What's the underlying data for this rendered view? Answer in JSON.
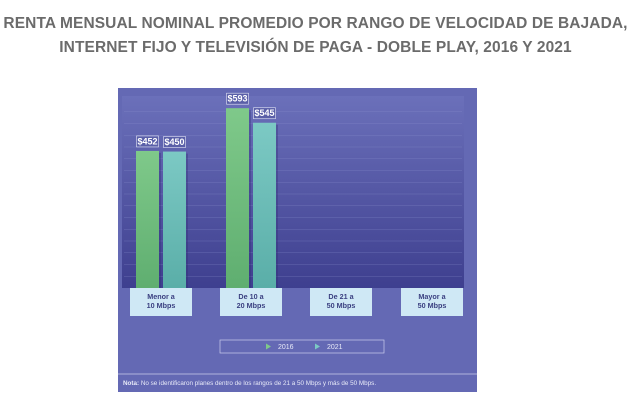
{
  "title": {
    "line1": "RENTA MENSUAL NOMINAL PROMEDIO POR RANGO DE VELOCIDAD DE BAJADA,",
    "line2": "INTERNET FIJO Y TELEVISIÓN DE PAGA - DOBLE PLAY, 2016 Y 2021"
  },
  "chart_data": {
    "type": "bar",
    "title": "RENTA MENSUAL NOMINAL PROMEDIO POR RANGO DE VELOCIDAD DE BAJADA, INTERNET FIJO Y TELEVISIÓN DE PAGA - DOBLE PLAY, 2016 Y 2021",
    "categories": [
      [
        "Menor a",
        "10 Mbps"
      ],
      [
        "De 10 a",
        "20 Mbps"
      ],
      [
        "De 21 a",
        "50 Mbps"
      ],
      [
        "Mayor a",
        "50 Mbps"
      ]
    ],
    "series": [
      {
        "name": "2016",
        "values": [
          452,
          593,
          null,
          null
        ],
        "labels": [
          "$452",
          "$593",
          "",
          ""
        ],
        "color": "#7fc98a"
      },
      {
        "name": "2021",
        "values": [
          450,
          545,
          null,
          null
        ],
        "labels": [
          "$450",
          "$545",
          "",
          ""
        ],
        "color": "#7cc9c4"
      }
    ],
    "ylim": [
      0,
      620
    ],
    "grid": true,
    "legend_position": "bottom"
  },
  "note": {
    "prefix": "Nota:",
    "text": " No se identificaron planes dentro de los rangos de 21 a 50 Mbps y más de 50 Mbps."
  },
  "colors": {
    "panel_bg": "#6469b4",
    "plot_bg_top": "#6b70ba",
    "plot_bg_bottom": "#3e3f8f",
    "category_box": "#cfe8f5",
    "category_text": "#3a3f80",
    "title_text": "#6b6b6b"
  }
}
